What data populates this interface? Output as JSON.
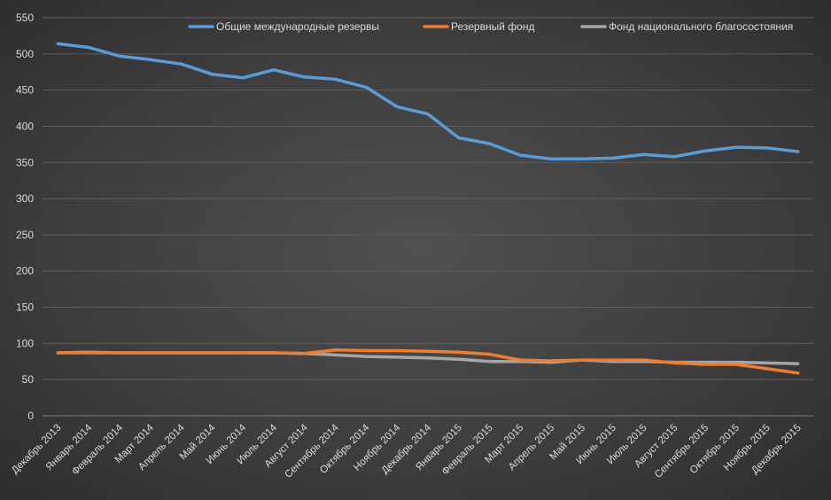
{
  "chart_data": {
    "type": "line",
    "title": "",
    "xlabel": "",
    "ylabel": "",
    "ylim": [
      0,
      550
    ],
    "yticks": [
      0,
      50,
      100,
      150,
      200,
      250,
      300,
      350,
      400,
      450,
      500,
      550
    ],
    "grid": "horizontal",
    "legend_position": "top",
    "categories": [
      "Декабрь 2013",
      "Январь 2014",
      "Февраль 2014",
      "Март 2014",
      "Апрель 2014",
      "Май 2014",
      "Июнь 2014",
      "Июль 2014",
      "Август 2014",
      "Сентябрь 2014",
      "Октябрь 2014",
      "Ноябрь 2014",
      "Декабрь 2014",
      "Январь 2015",
      "Февраль 2015",
      "Март 2015",
      "Апрель 2015",
      "Май 2015",
      "Июнь 2015",
      "Июль 2015",
      "Август 2015",
      "Сентябрь 2015",
      "Октябрь 2015",
      "Ноябрь 2015",
      "Декабрь 2015"
    ],
    "series": [
      {
        "name": "Общие международные резервы",
        "color": "#5b9bd5",
        "values": [
          514,
          509,
          497,
          492,
          486,
          472,
          467,
          478,
          468,
          465,
          454,
          427,
          417,
          384,
          376,
          360,
          355,
          355,
          356,
          361,
          358,
          366,
          371,
          370,
          365
        ]
      },
      {
        "name": "Резервный фонд",
        "color": "#ed7d31",
        "values": [
          87,
          87,
          87,
          87,
          87,
          87,
          87,
          87,
          86,
          91,
          90,
          90,
          89,
          88,
          85,
          77,
          76,
          77,
          77,
          77,
          73,
          71,
          71,
          65,
          59
        ]
      },
      {
        "name": "Фонд национального благосостояния",
        "color": "#a5a5a5",
        "values": [
          87,
          88,
          87,
          87,
          87,
          87,
          87,
          87,
          86,
          84,
          82,
          81,
          80,
          78,
          75,
          75,
          74,
          77,
          75,
          75,
          74,
          74,
          74,
          73,
          72
        ]
      }
    ]
  }
}
